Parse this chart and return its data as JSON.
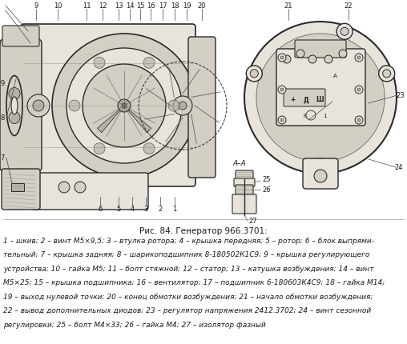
{
  "title": "Рис. 84. Генератор 966.3701:",
  "caption_lines": [
    "1 – шкив; 2 – винт М5×9,5; 3 – втулка ротора; 4 – крышка передняя; 5 – ротор; 6 – блок выпрями-",
    "тельный; 7 – крышка задняя; 8 – шарикоподшипник 8-180502К1С9; 9 – крышка регулирующего",
    "устройства; 10 – гайка М5; 11 – болт стяжной; 12 – статор; 13 – катушка возбуждения; 14 – винт",
    "М5×25; 15 – крышка подшипника; 16 – вентилятор; 17 – подшипник 6-180603К4С9; 18 – гайка М14;",
    "19 – выход нулевой точки; 20 – конец обмотки возбуждения; 21 – начало обмотки возбуждения;",
    "22 – вывод дополнительных диодов; 23 – регулятор напряжения 2412.3702; 24 – винт сезонной",
    "регулировки; 25 – болт М4×33; 26 – гайка М4; 27 – изолятор фазный"
  ],
  "bg_color": "#ffffff",
  "diagram_bg": "#f5f3ef",
  "line_color": "#2a2a2a",
  "fill_light": "#e8e4dc",
  "fill_mid": "#d4cfc5",
  "fill_dark": "#b8b2a6",
  "text_color": "#1a1a1a",
  "fig_width": 5.08,
  "fig_height": 4.31,
  "dpi": 100
}
